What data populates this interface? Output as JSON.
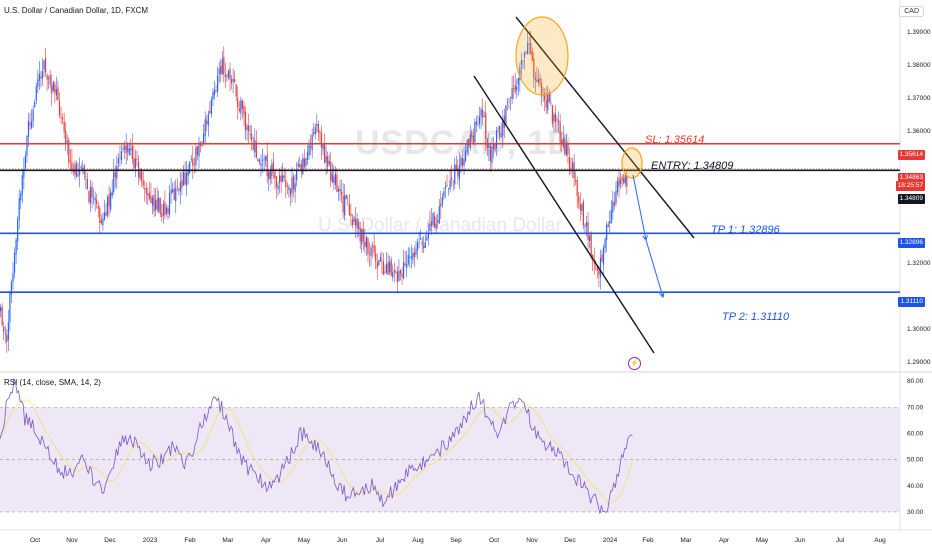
{
  "header": {
    "symbol_title": "U.S. Dollar / Canadian Dollar, 1D, FXCM",
    "currency": "CAD",
    "watermark": "USDCAD, 1D",
    "watermark_sub": "U.S. Dollar / Canadian Dollar"
  },
  "annotations": {
    "sl": "SL: 1.35614",
    "entry": "ENTRY: 1.34809",
    "tp1": "TP 1: 1.32896",
    "tp2": "TP 2: 1.31110"
  },
  "price_tags": {
    "sl": "1.35614",
    "current": "1.34863",
    "countdown": "18:25:57",
    "entry": "1.34809",
    "tp1": "1.32896",
    "tp2": "1.31110"
  },
  "rsi": {
    "title": "RSI (14, close, SMA, 14, 2)"
  },
  "colors": {
    "bull": "#2962ff",
    "bear": "#e53935",
    "sl_line": "#e53935",
    "entry_line": "#131722",
    "tp_line": "#1e53e5",
    "rsi_line": "#7e57c2",
    "rsi_ma": "#fdd835",
    "rsi_band": "#ede7f6",
    "highlight": "#f7a61b"
  },
  "chart_data": [
    {
      "type": "candlestick",
      "title": "U.S. Dollar / Canadian Dollar, 1D, FXCM",
      "ylim": [
        1.2875,
        1.3955
      ],
      "y_ticks": [
        1.29,
        1.3,
        1.3111,
        1.32,
        1.32896,
        1.34809,
        1.35614,
        1.36,
        1.37,
        1.38,
        1.39
      ],
      "x_ticks": [
        "Oct",
        "Nov",
        "Dec",
        "2023",
        "Feb",
        "Mar",
        "Apr",
        "May",
        "Jun",
        "Jul",
        "Aug",
        "Sep",
        "Oct",
        "Nov",
        "Dec",
        "2024",
        "Feb",
        "Mar",
        "Apr",
        "May",
        "Jun",
        "Jul",
        "Aug"
      ],
      "levels": [
        {
          "name": "SL",
          "value": 1.35614
        },
        {
          "name": "ENTRY",
          "value": 1.34809
        },
        {
          "name": "TP 1",
          "value": 1.32896
        },
        {
          "name": "TP 2",
          "value": 1.3111
        }
      ],
      "current_price": 1.34863,
      "close_path": [
        [
          0,
          1.305
        ],
        [
          4,
          1.298
        ],
        [
          10,
          1.33
        ],
        [
          18,
          1.362
        ],
        [
          28,
          1.38
        ],
        [
          36,
          1.37
        ],
        [
          44,
          1.352
        ],
        [
          52,
          1.347
        ],
        [
          60,
          1.338
        ],
        [
          66,
          1.332
        ],
        [
          74,
          1.348
        ],
        [
          82,
          1.356
        ],
        [
          90,
          1.346
        ],
        [
          98,
          1.338
        ],
        [
          106,
          1.336
        ],
        [
          114,
          1.343
        ],
        [
          122,
          1.349
        ],
        [
          130,
          1.358
        ],
        [
          136,
          1.368
        ],
        [
          142,
          1.38
        ],
        [
          148,
          1.376
        ],
        [
          156,
          1.365
        ],
        [
          164,
          1.355
        ],
        [
          172,
          1.349
        ],
        [
          180,
          1.344
        ],
        [
          188,
          1.343
        ],
        [
          196,
          1.352
        ],
        [
          204,
          1.36
        ],
        [
          212,
          1.349
        ],
        [
          220,
          1.339
        ],
        [
          228,
          1.333
        ],
        [
          236,
          1.325
        ],
        [
          244,
          1.32
        ],
        [
          252,
          1.318
        ],
        [
          258,
          1.316
        ],
        [
          264,
          1.324
        ],
        [
          272,
          1.326
        ],
        [
          280,
          1.333
        ],
        [
          288,
          1.342
        ],
        [
          296,
          1.35
        ],
        [
          304,
          1.357
        ],
        [
          310,
          1.366
        ],
        [
          316,
          1.353
        ],
        [
          324,
          1.362
        ],
        [
          330,
          1.371
        ],
        [
          336,
          1.38
        ],
        [
          340,
          1.388
        ],
        [
          344,
          1.378
        ],
        [
          350,
          1.372
        ],
        [
          356,
          1.365
        ],
        [
          362,
          1.358
        ],
        [
          368,
          1.35
        ],
        [
          374,
          1.338
        ],
        [
          380,
          1.326
        ],
        [
          386,
          1.319
        ],
        [
          392,
          1.332
        ],
        [
          398,
          1.342
        ],
        [
          401,
          1.348
        ],
        [
          404,
          1.345
        ]
      ]
    },
    {
      "type": "line",
      "title": "RSI (14, close, SMA, 14, 2)",
      "ylim": [
        25,
        82
      ],
      "y_ticks": [
        30,
        40,
        50,
        60,
        70,
        80
      ],
      "bands": [
        30,
        50,
        70
      ],
      "rsi_path": [
        [
          0,
          58
        ],
        [
          6,
          75
        ],
        [
          10,
          80
        ],
        [
          16,
          66
        ],
        [
          22,
          62
        ],
        [
          30,
          55
        ],
        [
          38,
          46
        ],
        [
          46,
          44
        ],
        [
          54,
          52
        ],
        [
          60,
          42
        ],
        [
          66,
          38
        ],
        [
          74,
          50
        ],
        [
          80,
          58
        ],
        [
          88,
          56
        ],
        [
          96,
          48
        ],
        [
          104,
          50
        ],
        [
          112,
          55
        ],
        [
          120,
          48
        ],
        [
          128,
          60
        ],
        [
          136,
          70
        ],
        [
          140,
          74
        ],
        [
          148,
          62
        ],
        [
          156,
          50
        ],
        [
          164,
          44
        ],
        [
          172,
          40
        ],
        [
          180,
          44
        ],
        [
          188,
          52
        ],
        [
          194,
          60
        ],
        [
          200,
          58
        ],
        [
          208,
          52
        ],
        [
          216,
          42
        ],
        [
          224,
          36
        ],
        [
          232,
          38
        ],
        [
          240,
          40
        ],
        [
          248,
          34
        ],
        [
          256,
          40
        ],
        [
          264,
          46
        ],
        [
          272,
          48
        ],
        [
          280,
          52
        ],
        [
          288,
          56
        ],
        [
          296,
          62
        ],
        [
          304,
          70
        ],
        [
          310,
          74
        ],
        [
          316,
          64
        ],
        [
          322,
          60
        ],
        [
          328,
          68
        ],
        [
          334,
          72
        ],
        [
          340,
          68
        ],
        [
          346,
          60
        ],
        [
          352,
          56
        ],
        [
          360,
          52
        ],
        [
          368,
          46
        ],
        [
          376,
          40
        ],
        [
          384,
          34
        ],
        [
          390,
          28
        ],
        [
          396,
          40
        ],
        [
          402,
          52
        ],
        [
          406,
          61
        ],
        [
          408,
          58
        ]
      ]
    }
  ]
}
